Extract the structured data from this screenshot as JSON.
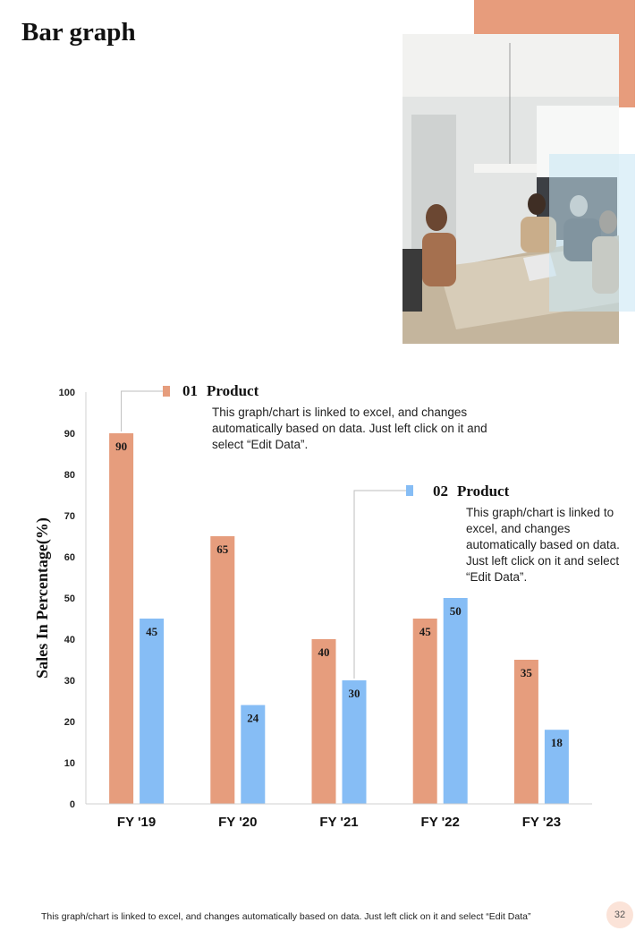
{
  "page": {
    "title": "Bar graph",
    "footer_note": "This graph/chart is linked to excel,  and changes automatically based on data. Just left click on it and select “Edit Data”",
    "page_number": "32"
  },
  "colors": {
    "accent_orange": "#e79c7c",
    "series_orange": "#e69d7d",
    "series_blue": "#86bdf5",
    "accent_light_blue": "#c6e6f4"
  },
  "legend": [
    {
      "number": "01",
      "title": "Product",
      "description": "This graph/chart is linked to excel, and changes automatically based on data. Just left click on it and select “Edit Data”."
    },
    {
      "number": "02",
      "title": "Product",
      "description": "This graph/chart is linked to excel, and changes automatically based on data. Just left click on it and select “Edit Data”."
    }
  ],
  "chart_data": {
    "type": "bar",
    "categories": [
      "FY '19",
      "FY '20",
      "FY '21",
      "FY '22",
      "FY '23"
    ],
    "series": [
      {
        "values": [
          90,
          65,
          40,
          45,
          35
        ],
        "color": "#e69d7d"
      },
      {
        "values": [
          45,
          24,
          30,
          50,
          18
        ],
        "color": "#86bdf5"
      }
    ],
    "title": "",
    "xlabel": "",
    "ylabel": "Sales In Percentage(%)",
    "ylim": [
      0,
      100
    ],
    "yticks": [
      0,
      10,
      20,
      30,
      40,
      50,
      60,
      70,
      80,
      90,
      100
    ],
    "grid": false,
    "legend_placement": "inside-top"
  }
}
